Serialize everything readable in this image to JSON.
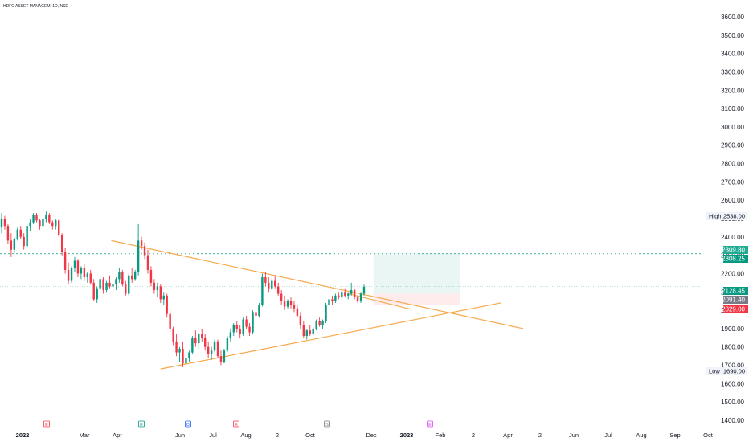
{
  "title": "HDFC ASSET MANAGEM, 1D, NSE",
  "chart_data": {
    "type": "candlestick",
    "y_axis": {
      "ticks": [
        "3600.00",
        "3500.00",
        "3400.00",
        "3300.00",
        "3200.00",
        "3100.00",
        "3000.00",
        "2900.00",
        "2800.00",
        "2700.00",
        "2600.00",
        "2500.00",
        "2400.00",
        "2300.00",
        "2200.00",
        "2100.00",
        "2000.00",
        "1900.00",
        "1800.00",
        "1700.00",
        "1600.00",
        "1500.00",
        "1400.00"
      ],
      "range": [
        1400,
        3600
      ]
    },
    "x_axis": {
      "ticks": [
        {
          "label": "2022",
          "bold": true
        },
        {
          "label": "Mar"
        },
        {
          "label": "Apr"
        },
        {
          "label": "Jun"
        },
        {
          "label": "Jul"
        },
        {
          "label": "Aug"
        },
        {
          "label": "2"
        },
        {
          "label": "Oct"
        },
        {
          "label": "Dec"
        },
        {
          "label": "2023",
          "bold": true
        },
        {
          "label": "Feb"
        },
        {
          "label": "2"
        },
        {
          "label": "Apr"
        },
        {
          "label": "2"
        },
        {
          "label": "Jun"
        },
        {
          "label": "Jul"
        },
        {
          "label": "Aug"
        },
        {
          "label": "Sep"
        },
        {
          "label": "Oct"
        }
      ]
    },
    "price_tags": [
      {
        "label": "High",
        "value": "2538.00",
        "style": "plain"
      },
      {
        "label": "",
        "value": "2309.80",
        "style": "green"
      },
      {
        "label": "",
        "value": "2308.25",
        "style": "green-dark"
      },
      {
        "label": "",
        "value": "2128.45",
        "style": "teal"
      },
      {
        "label": "",
        "value": "2091.40",
        "style": "gray"
      },
      {
        "label": "",
        "value": "2029.00",
        "style": "red"
      },
      {
        "label": "Low",
        "value": "1690.00",
        "style": "plain"
      }
    ],
    "event_markers": [
      {
        "letter": "E",
        "color": "#f23645"
      },
      {
        "letter": "E",
        "color": "#089981"
      },
      {
        "letter": "D",
        "color": "#2962ff"
      },
      {
        "letter": "E",
        "color": "#f23645"
      },
      {
        "letter": "S",
        "color": "#787b86"
      },
      {
        "letter": "E",
        "color": "#e040fb"
      }
    ],
    "candles": [
      [
        2455,
        2530,
        2420,
        2500
      ],
      [
        2500,
        2515,
        2440,
        2460
      ],
      [
        2460,
        2470,
        2360,
        2380
      ],
      [
        2380,
        2420,
        2290,
        2330
      ],
      [
        2330,
        2400,
        2310,
        2390
      ],
      [
        2390,
        2450,
        2380,
        2440
      ],
      [
        2440,
        2460,
        2390,
        2400
      ],
      [
        2400,
        2420,
        2330,
        2350
      ],
      [
        2350,
        2470,
        2340,
        2460
      ],
      [
        2460,
        2500,
        2430,
        2480
      ],
      [
        2480,
        2530,
        2470,
        2520
      ],
      [
        2520,
        2530,
        2480,
        2490
      ],
      [
        2490,
        2500,
        2440,
        2460
      ],
      [
        2460,
        2510,
        2450,
        2500
      ],
      [
        2500,
        2538,
        2480,
        2520
      ],
      [
        2520,
        2530,
        2470,
        2480
      ],
      [
        2480,
        2490,
        2440,
        2460
      ],
      [
        2460,
        2500,
        2440,
        2490
      ],
      [
        2490,
        2500,
        2400,
        2410
      ],
      [
        2410,
        2420,
        2300,
        2320
      ],
      [
        2320,
        2340,
        2200,
        2220
      ],
      [
        2220,
        2260,
        2140,
        2160
      ],
      [
        2160,
        2240,
        2150,
        2230
      ],
      [
        2230,
        2290,
        2210,
        2270
      ],
      [
        2270,
        2280,
        2180,
        2200
      ],
      [
        2200,
        2240,
        2170,
        2230
      ],
      [
        2230,
        2250,
        2160,
        2180
      ],
      [
        2180,
        2210,
        2150,
        2200
      ],
      [
        2200,
        2220,
        2140,
        2150
      ],
      [
        2150,
        2170,
        2050,
        2060
      ],
      [
        2060,
        2130,
        2040,
        2120
      ],
      [
        2120,
        2190,
        2100,
        2170
      ],
      [
        2170,
        2180,
        2090,
        2110
      ],
      [
        2110,
        2160,
        2100,
        2150
      ],
      [
        2150,
        2190,
        2120,
        2130
      ],
      [
        2130,
        2160,
        2100,
        2140
      ],
      [
        2140,
        2180,
        2110,
        2170
      ],
      [
        2170,
        2230,
        2150,
        2210
      ],
      [
        2210,
        2220,
        2130,
        2140
      ],
      [
        2140,
        2160,
        2080,
        2090
      ],
      [
        2090,
        2200,
        2080,
        2190
      ],
      [
        2190,
        2230,
        2150,
        2170
      ],
      [
        2170,
        2220,
        2160,
        2210
      ],
      [
        2210,
        2470,
        2190,
        2380
      ],
      [
        2380,
        2400,
        2330,
        2350
      ],
      [
        2350,
        2370,
        2280,
        2300
      ],
      [
        2300,
        2330,
        2200,
        2220
      ],
      [
        2220,
        2240,
        2130,
        2150
      ],
      [
        2150,
        2170,
        2090,
        2110
      ],
      [
        2110,
        2150,
        2070,
        2130
      ],
      [
        2130,
        2140,
        2040,
        2060
      ],
      [
        2060,
        2100,
        2030,
        2080
      ],
      [
        2080,
        2090,
        1960,
        1980
      ],
      [
        1980,
        2000,
        1880,
        1900
      ],
      [
        1900,
        1910,
        1810,
        1830
      ],
      [
        1830,
        1870,
        1750,
        1770
      ],
      [
        1770,
        1800,
        1720,
        1790
      ],
      [
        1790,
        1830,
        1690,
        1710
      ],
      [
        1710,
        1760,
        1700,
        1740
      ],
      [
        1740,
        1780,
        1720,
        1770
      ],
      [
        1770,
        1860,
        1760,
        1850
      ],
      [
        1850,
        1890,
        1800,
        1820
      ],
      [
        1820,
        1880,
        1790,
        1870
      ],
      [
        1870,
        1900,
        1830,
        1850
      ],
      [
        1850,
        1870,
        1780,
        1800
      ],
      [
        1800,
        1830,
        1740,
        1760
      ],
      [
        1760,
        1800,
        1730,
        1780
      ],
      [
        1780,
        1840,
        1770,
        1830
      ],
      [
        1830,
        1840,
        1740,
        1750
      ],
      [
        1750,
        1780,
        1700,
        1720
      ],
      [
        1720,
        1790,
        1710,
        1780
      ],
      [
        1780,
        1860,
        1770,
        1850
      ],
      [
        1850,
        1900,
        1830,
        1880
      ],
      [
        1880,
        1930,
        1860,
        1920
      ],
      [
        1920,
        1940,
        1880,
        1900
      ],
      [
        1900,
        1920,
        1850,
        1870
      ],
      [
        1870,
        1960,
        1860,
        1950
      ],
      [
        1950,
        1970,
        1900,
        1910
      ],
      [
        1910,
        1930,
        1860,
        1880
      ],
      [
        1880,
        2000,
        1870,
        1990
      ],
      [
        1990,
        2020,
        1950,
        1970
      ],
      [
        1970,
        2040,
        1960,
        2030
      ],
      [
        2030,
        2200,
        2020,
        2180
      ],
      [
        2180,
        2210,
        2130,
        2150
      ],
      [
        2150,
        2180,
        2100,
        2120
      ],
      [
        2120,
        2170,
        2110,
        2160
      ],
      [
        2160,
        2190,
        2120,
        2130
      ],
      [
        2130,
        2150,
        2080,
        2090
      ],
      [
        2090,
        2110,
        2030,
        2050
      ],
      [
        2050,
        2080,
        2000,
        2020
      ],
      [
        2020,
        2060,
        2010,
        2050
      ],
      [
        2050,
        2070,
        2010,
        2030
      ],
      [
        2030,
        2050,
        1990,
        2010
      ],
      [
        2010,
        2030,
        1960,
        1970
      ],
      [
        1970,
        1990,
        1900,
        1920
      ],
      [
        1920,
        1940,
        1850,
        1860
      ],
      [
        1860,
        1900,
        1840,
        1890
      ],
      [
        1890,
        1920,
        1860,
        1870
      ],
      [
        1870,
        1910,
        1860,
        1900
      ],
      [
        1900,
        1950,
        1890,
        1940
      ],
      [
        1940,
        1960,
        1910,
        1920
      ],
      [
        1920,
        1950,
        1900,
        1940
      ],
      [
        1940,
        2040,
        1930,
        2030
      ],
      [
        2030,
        2070,
        2010,
        2060
      ],
      [
        2060,
        2080,
        2030,
        2050
      ],
      [
        2050,
        2090,
        2040,
        2080
      ],
      [
        2080,
        2100,
        2060,
        2070
      ],
      [
        2070,
        2110,
        2060,
        2100
      ],
      [
        2100,
        2120,
        2070,
        2080
      ],
      [
        2080,
        2100,
        2060,
        2090
      ],
      [
        2090,
        2150,
        2080,
        2110
      ],
      [
        2110,
        2120,
        2060,
        2070
      ],
      [
        2070,
        2080,
        2040,
        2050
      ],
      [
        2050,
        2100,
        2040,
        2090
      ],
      [
        2090,
        2140,
        2080,
        2128.45
      ]
    ],
    "drawings": {
      "resistance_line": {
        "from": [
          "2022-03-31",
          2380
        ],
        "to": [
          "2023-04-20",
          1900
        ]
      },
      "support_line": {
        "from": [
          "2022-05-16",
          1680
        ],
        "to": [
          "2023-03-30",
          2040
        ]
      },
      "short_line": {
        "from": [
          "2022-11-08",
          2090
        ],
        "to": [
          "2023-01-05",
          2005
        ]
      },
      "position": {
        "entry": 2091.4,
        "target": 2309.8,
        "stop": 2029.0,
        "from": "2022-12-01",
        "to": "2023-02-20"
      },
      "level_line": 2308.25,
      "last_price": 2128.45
    }
  }
}
